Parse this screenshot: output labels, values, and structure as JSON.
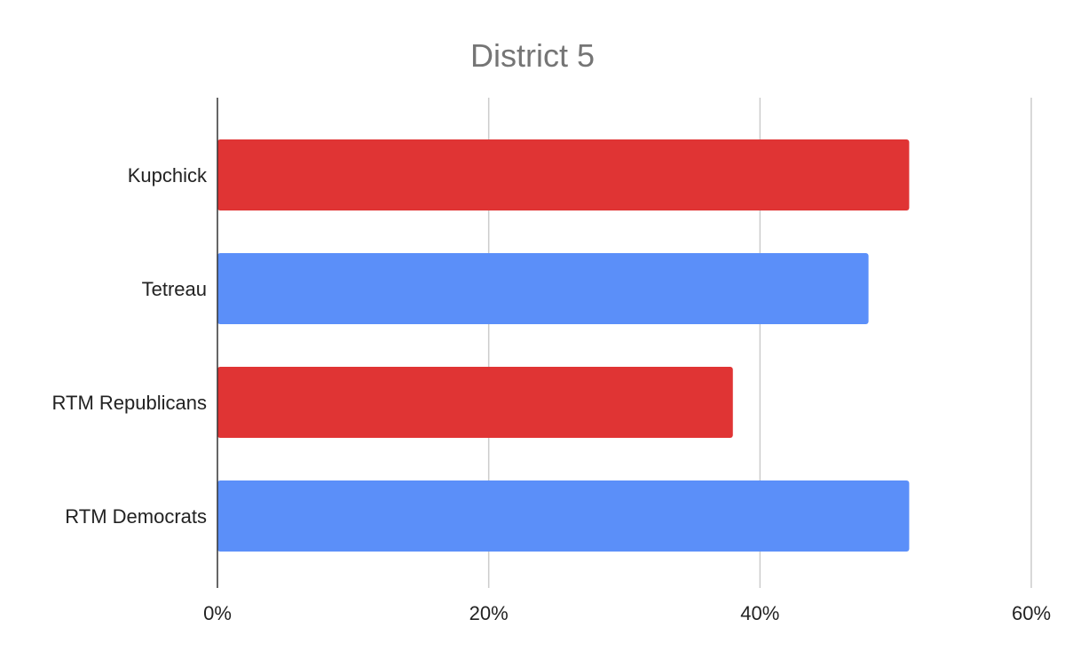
{
  "chart_data": {
    "type": "bar",
    "orientation": "horizontal",
    "title": "District 5",
    "xlabel": "",
    "ylabel": "",
    "categories": [
      "Kupchick",
      "Tetreau",
      "RTM Republicans",
      "RTM Democrats"
    ],
    "values": [
      51,
      48,
      38,
      51
    ],
    "bar_colors": [
      "#e03434",
      "#5b8ff9",
      "#e03434",
      "#5b8ff9"
    ],
    "x_ticks": [
      0,
      20,
      40,
      60
    ],
    "x_tick_labels": [
      "0%",
      "20%",
      "40%",
      "60%"
    ],
    "xlim": [
      0,
      60
    ],
    "grid": true,
    "legend": "none"
  }
}
